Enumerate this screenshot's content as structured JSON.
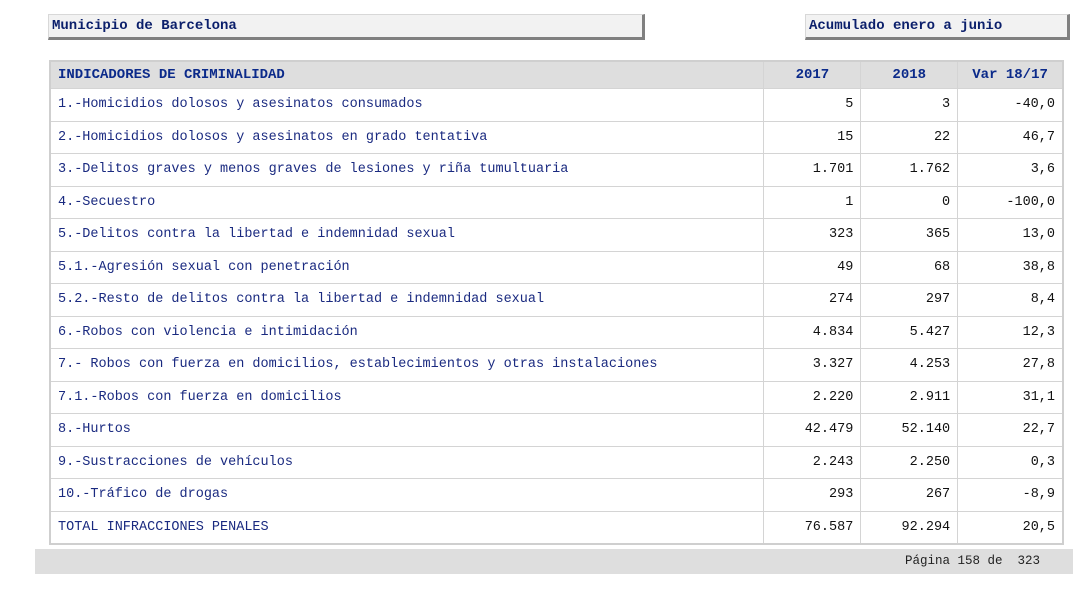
{
  "header": {
    "municipality": "Municipio de Barcelona",
    "period": "Acumulado enero a junio"
  },
  "table": {
    "columns": [
      "INDICADORES DE CRIMINALIDAD",
      "2017",
      "2018",
      "Var 18/17"
    ],
    "rows": [
      [
        "1.-Homicidios dolosos y asesinatos consumados",
        "5",
        "3",
        "-40,0"
      ],
      [
        "2.-Homicidios dolosos y asesinatos en grado tentativa",
        "15",
        "22",
        "46,7"
      ],
      [
        "3.-Delitos graves y menos graves de lesiones y riña tumultuaria",
        "1.701",
        "1.762",
        "3,6"
      ],
      [
        "4.-Secuestro",
        "1",
        "0",
        "-100,0"
      ],
      [
        "5.-Delitos contra la libertad e indemnidad sexual",
        "323",
        "365",
        "13,0"
      ],
      [
        "5.1.-Agresión sexual con penetración",
        "49",
        "68",
        "38,8"
      ],
      [
        "5.2.-Resto de delitos contra la libertad e indemnidad sexual",
        "274",
        "297",
        "8,4"
      ],
      [
        "6.-Robos con violencia e intimidación",
        "4.834",
        "5.427",
        "12,3"
      ],
      [
        "7.- Robos con fuerza en domicilios, establecimientos y otras instalaciones",
        "3.327",
        "4.253",
        "27,8"
      ],
      [
        "7.1.-Robos con fuerza en domicilios",
        "2.220",
        "2.911",
        "31,1"
      ],
      [
        "8.-Hurtos",
        "42.479",
        "52.140",
        "22,7"
      ],
      [
        "9.-Sustracciones de vehículos",
        "2.243",
        "2.250",
        "0,3"
      ],
      [
        "10.-Tráfico de drogas",
        "293",
        "267",
        "-8,9"
      ],
      [
        "TOTAL INFRACCIONES PENALES",
        "76.587",
        "92.294",
        "20,5"
      ]
    ]
  },
  "footer": {
    "page_label": "Página 158 de  323"
  }
}
